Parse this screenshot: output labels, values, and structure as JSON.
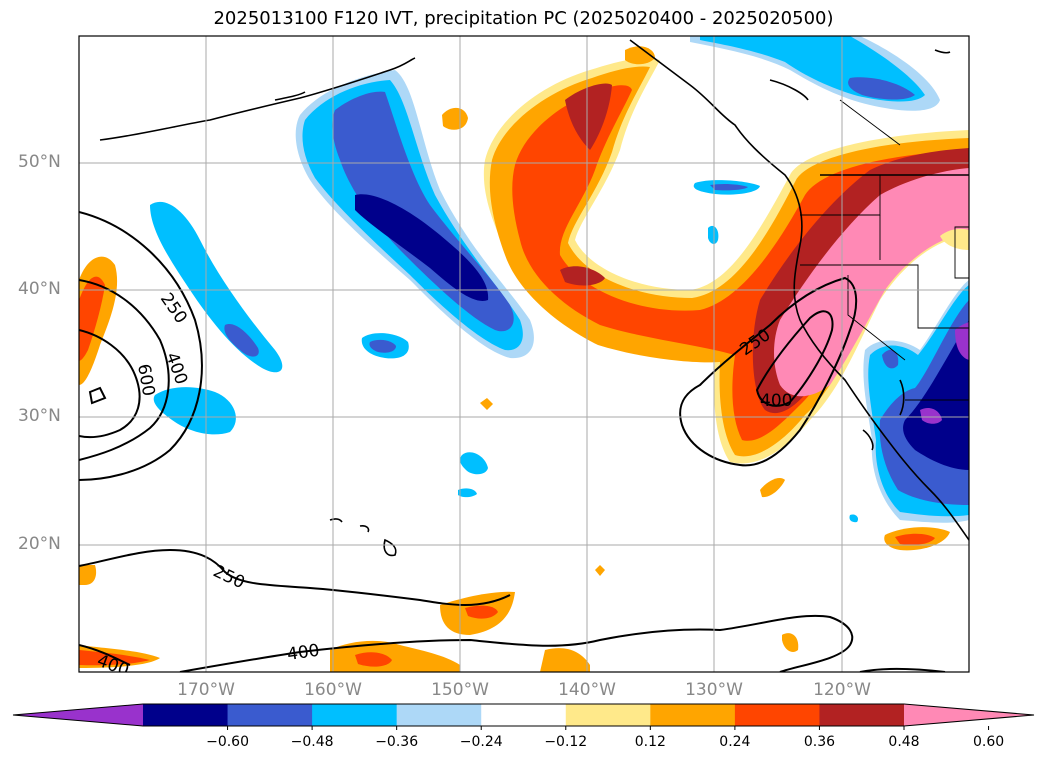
{
  "title": "2025013100 F120 IVT, precipitation PC (2025020400 - 2025020500)",
  "lat_labels": [
    "50°N",
    "40°N",
    "30°N",
    "20°N"
  ],
  "lon_labels": [
    "170°W",
    "160°W",
    "150°W",
    "140°W",
    "130°W",
    "120°W"
  ],
  "contour_labels": [
    "250",
    "400",
    "600",
    "250",
    "400",
    "250",
    "400",
    "400",
    "250"
  ],
  "colorbar": {
    "ticks": [
      "−0.60",
      "−0.48",
      "−0.36",
      "−0.24",
      "−0.12",
      "0.12",
      "0.24",
      "0.36",
      "0.48",
      "0.60"
    ],
    "colors": [
      "#9932cc",
      "#00008b",
      "#3a5bcf",
      "#00bfff",
      "#add8f7",
      "#ffffff",
      "#ffe98a",
      "#ffa500",
      "#ff4500",
      "#b22222",
      "#ff89b5"
    ]
  }
}
